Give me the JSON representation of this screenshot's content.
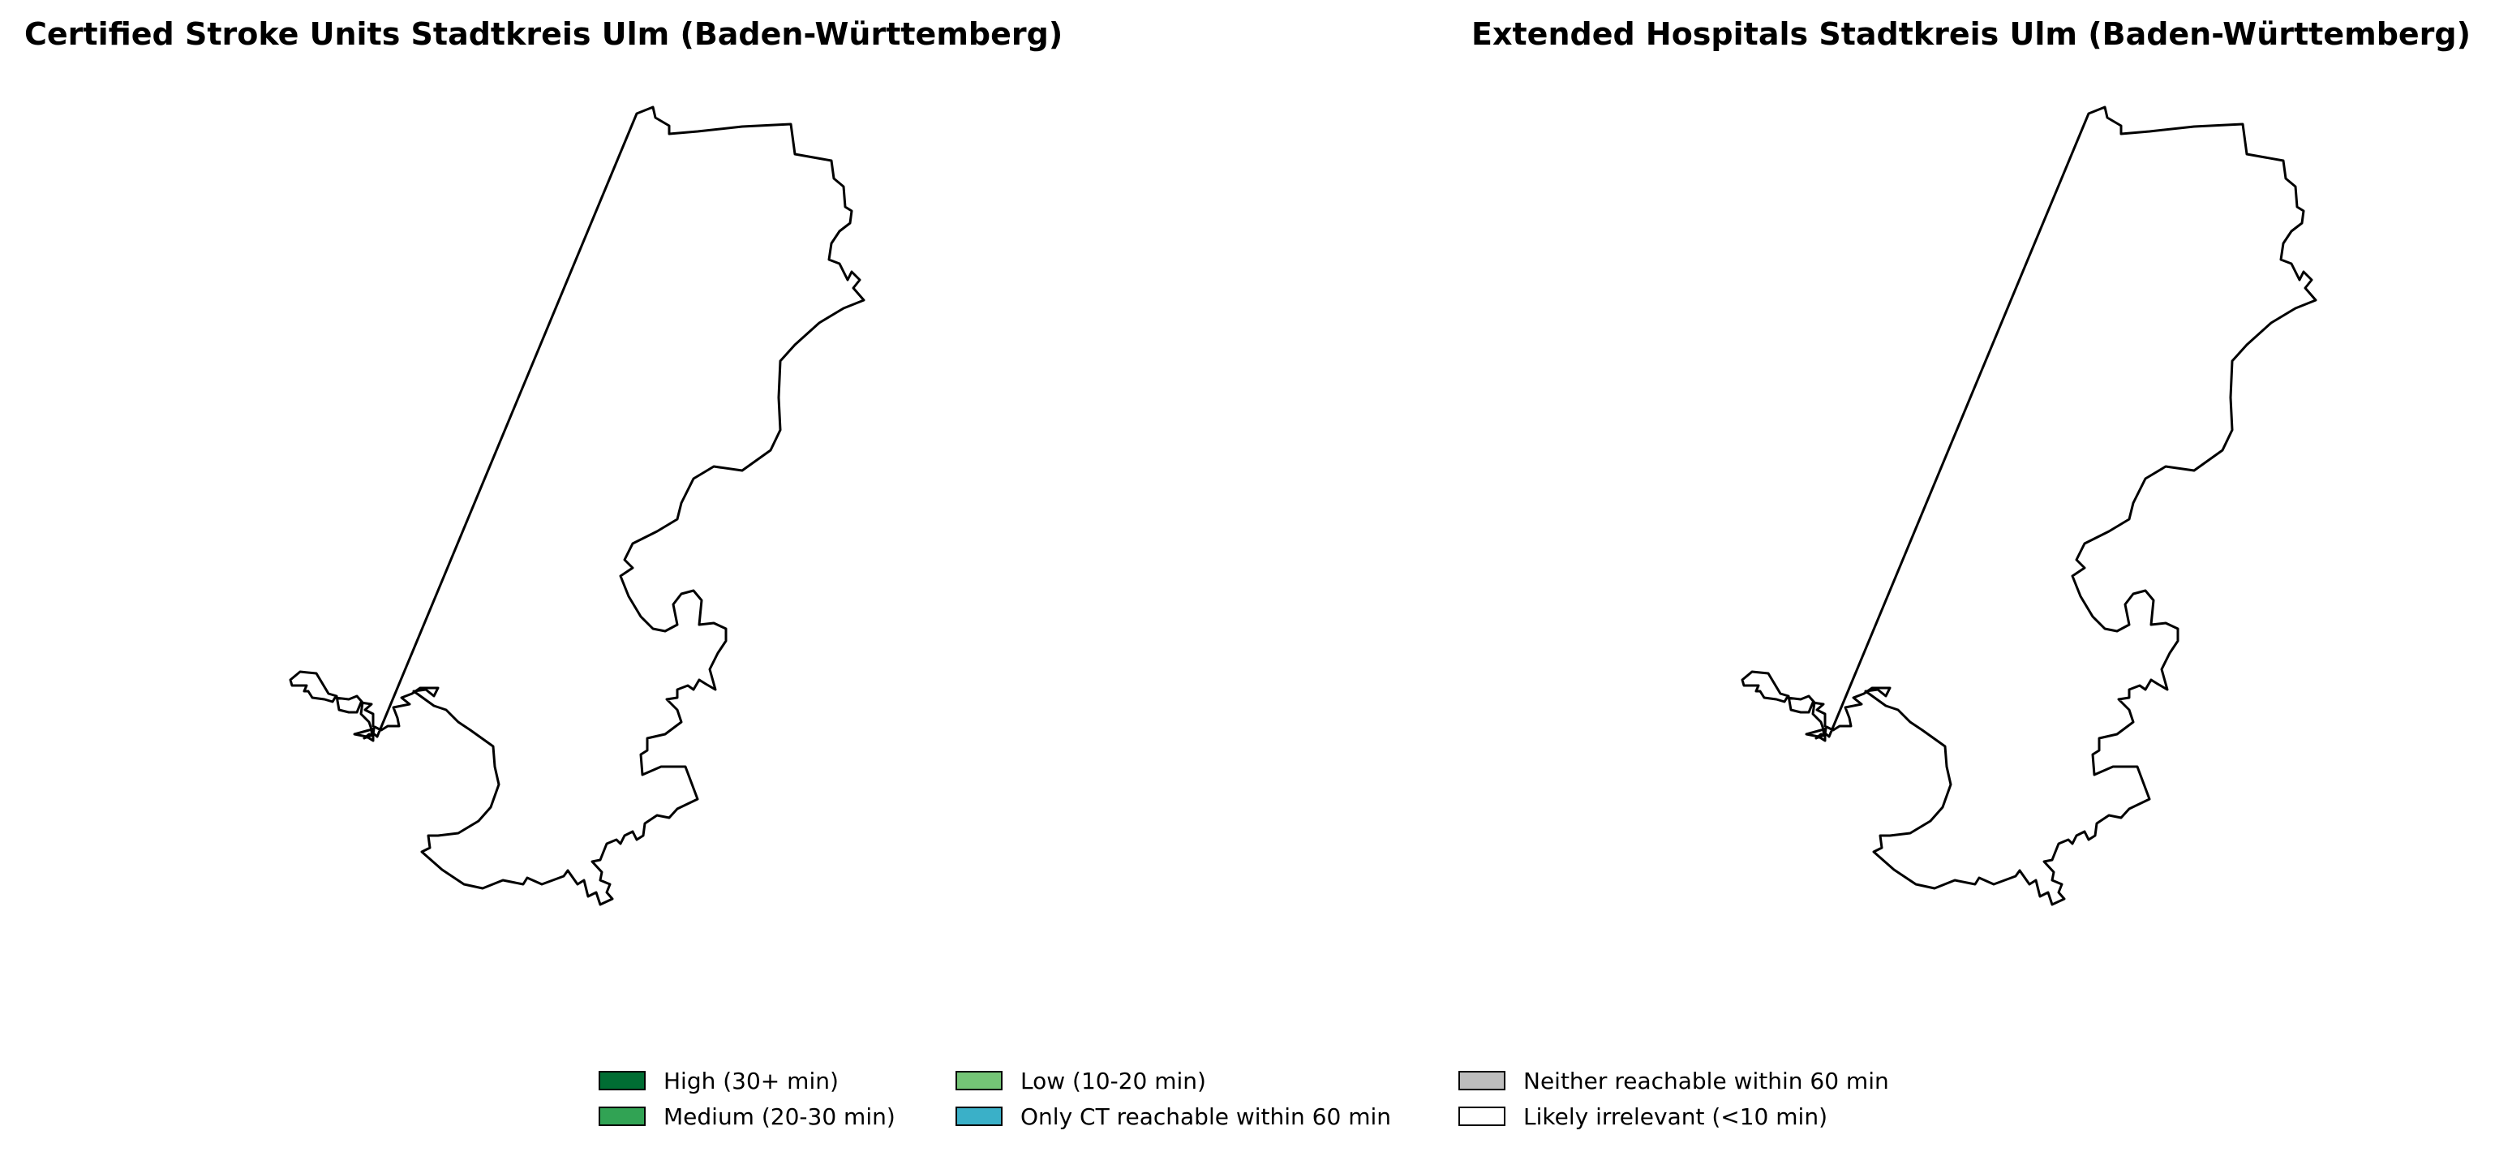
{
  "maps": {
    "left": {
      "title": "Certified Stroke Units Stadtkreis Ulm (Baden-Württemberg)"
    },
    "right": {
      "title": "Extended Hospitals Stadtkreis Ulm (Baden-Württemberg)"
    }
  },
  "region": {
    "name": "Stadtkreis Ulm",
    "outline_color": "#000000",
    "fill_color": "#ffffff"
  },
  "legend": {
    "items": [
      {
        "label": "High (30+ min)",
        "color": "#006d33"
      },
      {
        "label": "Medium (20-30 min)",
        "color": "#31a354"
      },
      {
        "label": "Low (10-20 min)",
        "color": "#74c476"
      },
      {
        "label": "Only CT reachable within 60 min",
        "color": "#3ab0c8"
      },
      {
        "label": "Neither reachable within 60 min",
        "color": "#bdbdbd"
      },
      {
        "label": "Likely irrelevant (<10 min)",
        "color": "#ffffff"
      }
    ]
  }
}
